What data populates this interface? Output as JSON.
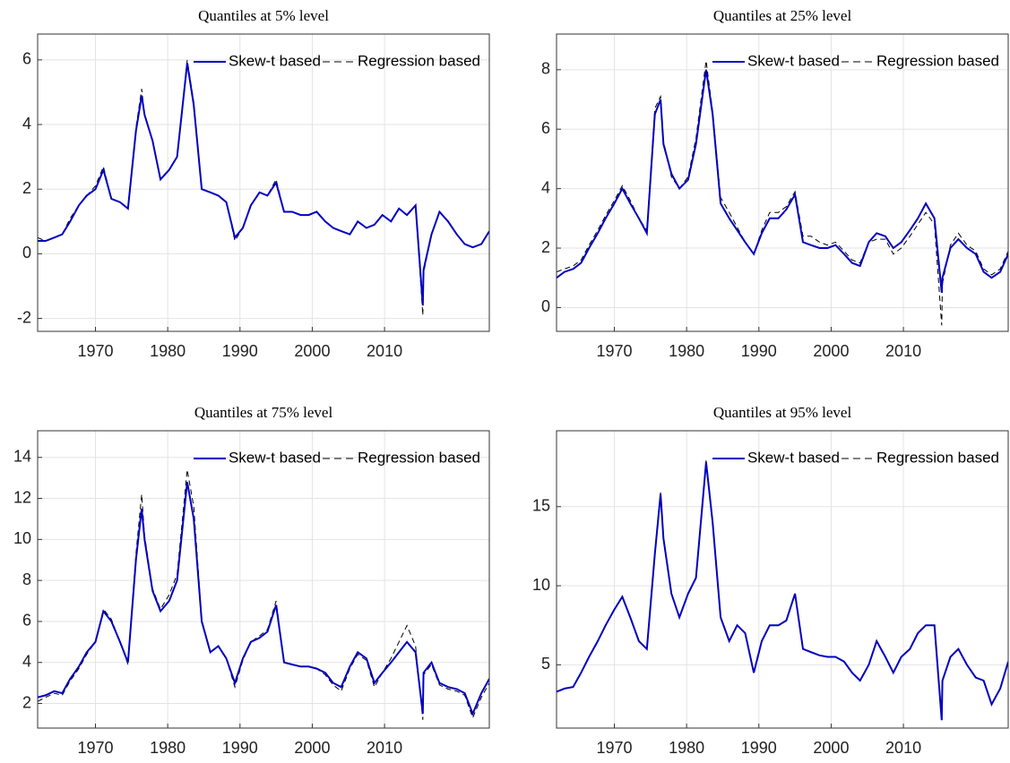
{
  "chart_data": [
    {
      "type": "line",
      "title": "Quantiles at 5% level",
      "x": [
        1962.0,
        1963.1,
        1964.3,
        1965.4,
        1966.5,
        1967.7,
        1968.8,
        1970.0,
        1971.1,
        1972.2,
        1973.4,
        1974.5,
        1975.6,
        1976.4,
        1976.8,
        1977.9,
        1979.0,
        1980.2,
        1981.3,
        1982.7,
        1983.6,
        1984.7,
        1985.9,
        1987.0,
        1988.1,
        1989.3,
        1990.4,
        1991.5,
        1992.7,
        1993.8,
        1995.0,
        1996.1,
        1997.2,
        1998.4,
        1999.5,
        2000.6,
        2001.8,
        2002.9,
        2004.0,
        2005.2,
        2006.3,
        2007.5,
        2008.6,
        2009.7,
        2010.9,
        2012.0,
        2013.1,
        2014.3,
        2015.3,
        2015.4,
        2016.5,
        2017.6,
        2018.8,
        2020.0,
        2021.1,
        2022.2,
        2023.4,
        2024.5
      ],
      "series": [
        {
          "name": "Skew-t based",
          "color": "#0000c0",
          "line_style": "solid",
          "values": [
            0.4,
            0.4,
            0.5,
            0.6,
            1.0,
            1.5,
            1.8,
            2.0,
            2.6,
            1.7,
            1.6,
            1.4,
            3.8,
            4.9,
            4.3,
            3.5,
            2.3,
            2.6,
            3.0,
            5.9,
            4.6,
            2.0,
            1.9,
            1.8,
            1.6,
            0.5,
            0.8,
            1.5,
            1.9,
            1.8,
            2.2,
            1.3,
            1.3,
            1.2,
            1.2,
            1.3,
            1.0,
            0.8,
            0.7,
            0.6,
            1.0,
            0.8,
            0.9,
            1.2,
            1.0,
            1.4,
            1.2,
            1.5,
            -1.6,
            -0.5,
            0.6,
            1.3,
            1.0,
            0.6,
            0.3,
            0.2,
            0.3,
            0.7
          ]
        },
        {
          "name": "Regression based",
          "color": "#000000",
          "line_style": "dashed",
          "values": [
            0.5,
            0.4,
            0.5,
            0.6,
            1.1,
            1.5,
            1.8,
            2.1,
            2.7,
            1.7,
            1.6,
            1.4,
            3.9,
            5.1,
            4.3,
            3.5,
            2.3,
            2.6,
            3.0,
            6.0,
            4.7,
            2.0,
            1.9,
            1.8,
            1.6,
            0.4,
            0.8,
            1.5,
            1.9,
            1.8,
            2.3,
            1.3,
            1.3,
            1.2,
            1.2,
            1.3,
            1.0,
            0.8,
            0.7,
            0.6,
            1.0,
            0.8,
            0.9,
            1.2,
            1.0,
            1.4,
            1.2,
            1.5,
            -1.9,
            -0.6,
            0.6,
            1.3,
            1.0,
            0.6,
            0.3,
            0.2,
            0.3,
            0.7
          ]
        }
      ],
      "xlim": [
        1962,
        2024.5
      ],
      "ylim": [
        -2.4,
        6.8
      ],
      "xticks": [
        1970,
        1980,
        1990,
        2000,
        2010
      ],
      "yticks": [
        -2,
        0,
        2,
        4,
        6
      ],
      "grid": true
    },
    {
      "type": "line",
      "title": "Quantiles at 25% level",
      "x": [
        1962.0,
        1963.1,
        1964.3,
        1965.4,
        1966.5,
        1967.7,
        1968.8,
        1970.0,
        1971.1,
        1972.2,
        1973.4,
        1974.5,
        1975.6,
        1976.4,
        1976.8,
        1977.9,
        1979.0,
        1980.2,
        1981.3,
        1982.7,
        1983.6,
        1984.7,
        1985.9,
        1987.0,
        1988.1,
        1989.3,
        1990.4,
        1991.5,
        1992.7,
        1993.8,
        1995.0,
        1996.1,
        1997.2,
        1998.4,
        1999.5,
        2000.6,
        2001.8,
        2002.9,
        2004.0,
        2005.2,
        2006.3,
        2007.5,
        2008.6,
        2009.7,
        2010.9,
        2012.0,
        2013.1,
        2014.3,
        2015.3,
        2015.4,
        2016.5,
        2017.6,
        2018.8,
        2020.0,
        2021.1,
        2022.2,
        2023.4,
        2024.5
      ],
      "series": [
        {
          "name": "Skew-t based",
          "color": "#0000c0",
          "line_style": "solid",
          "values": [
            1.0,
            1.2,
            1.3,
            1.5,
            2.0,
            2.5,
            3.0,
            3.5,
            4.0,
            3.5,
            3.0,
            2.5,
            6.5,
            7.0,
            5.5,
            4.5,
            4.0,
            4.3,
            5.5,
            8.0,
            6.5,
            3.5,
            3.0,
            2.6,
            2.2,
            1.8,
            2.5,
            3.0,
            3.0,
            3.3,
            3.8,
            2.2,
            2.1,
            2.0,
            2.0,
            2.1,
            1.8,
            1.5,
            1.4,
            2.2,
            2.5,
            2.4,
            2.0,
            2.2,
            2.6,
            3.0,
            3.5,
            3.0,
            0.5,
            1.0,
            2.0,
            2.3,
            2.0,
            1.8,
            1.2,
            1.0,
            1.2,
            1.8
          ]
        },
        {
          "name": "Regression based",
          "color": "#000000",
          "line_style": "dashed",
          "values": [
            1.2,
            1.3,
            1.4,
            1.6,
            2.1,
            2.6,
            3.1,
            3.6,
            4.1,
            3.6,
            3.0,
            2.6,
            6.7,
            7.1,
            5.6,
            4.4,
            4.0,
            4.4,
            5.7,
            8.3,
            6.6,
            3.7,
            3.2,
            2.7,
            2.2,
            1.8,
            2.6,
            3.2,
            3.2,
            3.4,
            3.9,
            2.4,
            2.4,
            2.2,
            2.1,
            2.2,
            1.9,
            1.6,
            1.5,
            2.2,
            2.3,
            2.3,
            1.8,
            2.0,
            2.4,
            2.8,
            3.2,
            2.8,
            -0.6,
            0.8,
            2.1,
            2.5,
            2.1,
            1.9,
            1.3,
            1.1,
            1.3,
            1.9
          ]
        }
      ],
      "xlim": [
        1962,
        2024.5
      ],
      "ylim": [
        -0.8,
        9.2
      ],
      "xticks": [
        1970,
        1980,
        1990,
        2000,
        2010
      ],
      "yticks": [
        0,
        2,
        4,
        6,
        8
      ],
      "grid": true
    },
    {
      "type": "line",
      "title": "Quantiles at 75% level",
      "x": [
        1962.0,
        1963.1,
        1964.3,
        1965.4,
        1966.5,
        1967.7,
        1968.8,
        1970.0,
        1971.1,
        1972.2,
        1973.4,
        1974.5,
        1975.6,
        1976.4,
        1976.8,
        1977.9,
        1979.0,
        1980.2,
        1981.3,
        1982.7,
        1983.6,
        1984.7,
        1985.9,
        1987.0,
        1988.1,
        1989.3,
        1990.4,
        1991.5,
        1992.7,
        1993.8,
        1995.0,
        1996.1,
        1997.2,
        1998.4,
        1999.5,
        2000.6,
        2001.8,
        2002.9,
        2004.0,
        2005.2,
        2006.3,
        2007.5,
        2008.6,
        2009.7,
        2010.9,
        2012.0,
        2013.1,
        2014.3,
        2015.3,
        2015.4,
        2016.5,
        2017.6,
        2018.8,
        2020.0,
        2021.1,
        2022.2,
        2023.4,
        2024.5
      ],
      "series": [
        {
          "name": "Skew-t based",
          "color": "#0000c0",
          "line_style": "solid",
          "values": [
            2.3,
            2.4,
            2.6,
            2.5,
            3.2,
            3.8,
            4.5,
            5.0,
            6.5,
            6.0,
            5.0,
            4.0,
            9.0,
            11.5,
            10.0,
            7.5,
            6.5,
            7.0,
            8.0,
            12.8,
            11.0,
            6.0,
            4.5,
            4.8,
            4.2,
            3.0,
            4.2,
            5.0,
            5.2,
            5.5,
            6.8,
            4.0,
            3.9,
            3.8,
            3.8,
            3.7,
            3.5,
            3.0,
            2.8,
            3.8,
            4.5,
            4.2,
            3.0,
            3.5,
            4.0,
            4.5,
            5.0,
            4.5,
            1.5,
            3.5,
            4.0,
            3.0,
            2.8,
            2.7,
            2.5,
            1.5,
            2.5,
            3.2
          ]
        },
        {
          "name": "Regression based",
          "color": "#000000",
          "line_style": "dashed",
          "values": [
            2.1,
            2.3,
            2.5,
            2.4,
            3.1,
            3.7,
            4.4,
            5.0,
            6.6,
            6.1,
            5.0,
            3.9,
            9.3,
            12.2,
            10.2,
            7.6,
            6.6,
            7.3,
            8.3,
            13.4,
            11.6,
            6.1,
            4.5,
            4.8,
            4.2,
            2.8,
            4.1,
            5.0,
            5.3,
            5.6,
            7.0,
            4.0,
            3.9,
            3.8,
            3.8,
            3.7,
            3.4,
            2.9,
            2.6,
            3.7,
            4.4,
            4.1,
            2.8,
            3.5,
            4.2,
            5.0,
            5.8,
            4.8,
            1.2,
            3.4,
            3.9,
            2.9,
            2.7,
            2.6,
            2.4,
            1.3,
            2.3,
            3.0
          ]
        }
      ],
      "xlim": [
        1962,
        2024.5
      ],
      "ylim": [
        0.8,
        15.3
      ],
      "xticks": [
        1970,
        1980,
        1990,
        2000,
        2010
      ],
      "yticks": [
        2,
        4,
        6,
        8,
        10,
        12,
        14
      ],
      "grid": true
    },
    {
      "type": "line",
      "title": "Quantiles at 95% level",
      "x": [
        1962.0,
        1963.1,
        1964.3,
        1965.4,
        1966.5,
        1967.7,
        1968.8,
        1970.0,
        1971.1,
        1972.2,
        1973.4,
        1974.5,
        1975.6,
        1976.4,
        1976.8,
        1977.9,
        1979.0,
        1980.2,
        1981.3,
        1982.7,
        1983.6,
        1984.7,
        1985.9,
        1987.0,
        1988.1,
        1989.3,
        1990.4,
        1991.5,
        1992.7,
        1993.8,
        1995.0,
        1996.1,
        1997.2,
        1998.4,
        1999.5,
        2000.6,
        2001.8,
        2002.9,
        2004.0,
        2005.2,
        2006.3,
        2007.5,
        2008.6,
        2009.7,
        2010.9,
        2012.0,
        2013.1,
        2014.3,
        2015.3,
        2015.4,
        2016.5,
        2017.6,
        2018.8,
        2020.0,
        2021.1,
        2022.2,
        2023.4,
        2024.5
      ],
      "series": [
        {
          "name": "Skew-t based",
          "color": "#0000c0",
          "line_style": "solid",
          "values": [
            3.3,
            3.5,
            3.6,
            4.5,
            5.5,
            6.5,
            7.5,
            8.5,
            9.3,
            8.0,
            6.5,
            6.0,
            12,
            15.8,
            13,
            9.5,
            8,
            9.5,
            10.5,
            17.8,
            14,
            8,
            6.5,
            7.5,
            7,
            4.5,
            6.5,
            7.5,
            7.5,
            7.8,
            9.5,
            6,
            5.8,
            5.6,
            5.5,
            5.5,
            5.2,
            4.5,
            4,
            5,
            6.5,
            5.5,
            4.5,
            5.5,
            6,
            7,
            7.5,
            7.5,
            1.5,
            4,
            5.5,
            6,
            5,
            4.2,
            4,
            2.5,
            3.5,
            5.2
          ]
        },
        {
          "name": "Regression based",
          "color": "#000000",
          "line_style": "dashed",
          "values": [
            3.3,
            3.5,
            3.6,
            4.5,
            5.5,
            6.5,
            7.5,
            8.5,
            9.3,
            8.0,
            6.5,
            6.0,
            12,
            15.9,
            13,
            9.5,
            8,
            9.5,
            10.5,
            18.0,
            14,
            8,
            6.5,
            7.5,
            7,
            4.5,
            6.5,
            7.5,
            7.5,
            7.8,
            9.5,
            6,
            5.8,
            5.6,
            5.5,
            5.5,
            5.2,
            4.5,
            4,
            5,
            6.5,
            5.5,
            4.5,
            5.5,
            6,
            7,
            7.5,
            7.5,
            1.4,
            4,
            5.5,
            6,
            5,
            4.2,
            4,
            2.5,
            3.5,
            5.2
          ]
        }
      ],
      "xlim": [
        1962,
        2024.5
      ],
      "ylim": [
        1,
        19.8
      ],
      "xticks": [
        1970,
        1980,
        1990,
        2000,
        2010
      ],
      "yticks": [
        5,
        10,
        15
      ],
      "grid": true
    }
  ]
}
